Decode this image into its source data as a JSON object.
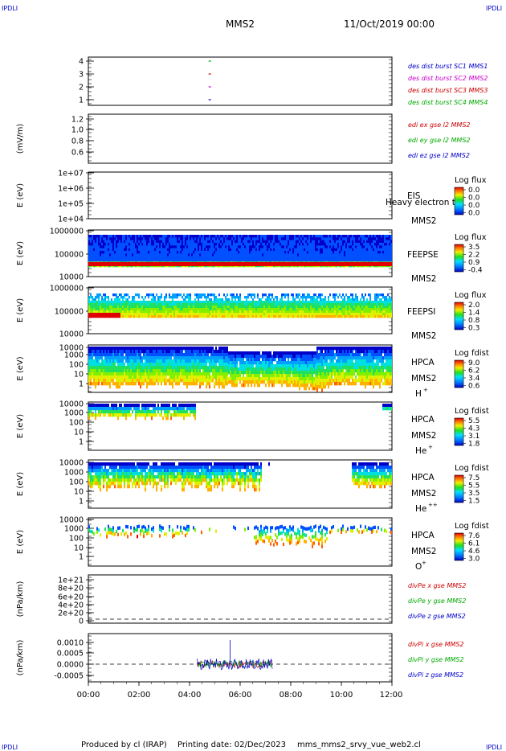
{
  "header": {
    "corner_tl": "IPDLI",
    "corner_tr": "IPDLI",
    "spacecraft": "MMS2",
    "date": "11/Oct/2019 00:00"
  },
  "footer": {
    "corner_bl": "IPDLI",
    "corner_br": "IPDLI",
    "credit": "Produced by cl (IRAP)",
    "printing": "Printing date: 02/Dec/2023",
    "file": "mms_mms2_srvy_vue_web2.cl"
  },
  "x_ticks": [
    "00:00",
    "02:00",
    "04:00",
    "06:00",
    "08:00",
    "10:00",
    "12:00"
  ],
  "panels": [
    {
      "id": "burst",
      "ticks": [
        "4",
        "3",
        "2",
        "1"
      ],
      "ylabel": "",
      "legend": [
        {
          "text": "des dist burst SC1 MMS1",
          "color": "#0000cc"
        },
        {
          "text": "des dist burst SC2 MMS2",
          "color": "#cc00cc"
        },
        {
          "text": "des dist burst SC3 MMS3",
          "color": "#cc0000"
        },
        {
          "text": "des dist burst SC4 MMS4",
          "color": "#00aa00"
        }
      ]
    },
    {
      "id": "edi",
      "ticks": [
        "1.2",
        "1.0",
        "0.8",
        "0.6"
      ],
      "ylabel": "(mV/m)",
      "legend": [
        {
          "text": "edi ex gse l2 MMS2",
          "color": "#cc0000"
        },
        {
          "text": "edi ey gse l2 MMS2",
          "color": "#00aa00"
        },
        {
          "text": "edi ez gse l2 MMS2",
          "color": "#0000cc"
        }
      ]
    },
    {
      "id": "eis",
      "ticks": [
        "1e+07",
        "1e+06",
        "1e+05",
        "1e+04"
      ],
      "ylabel": "E (eV)",
      "inst": "EIS",
      "sc": "MMS2",
      "note": "Heavy electron to",
      "cbar_title": "Log flux",
      "cbar_ticks": [
        "0.0",
        "0.0",
        "0.0",
        "0.0"
      ]
    },
    {
      "id": "feepse",
      "ticks": [
        "1000000",
        "100000",
        "10000"
      ],
      "ylabel": "E (eV)",
      "inst": "FEEPSE",
      "sc": "MMS2",
      "cbar_title": "Log flux",
      "cbar_ticks": [
        "3.5",
        "2.2",
        "0.9",
        "-0.4"
      ]
    },
    {
      "id": "feepsi",
      "ticks": [
        "1000000",
        "100000",
        "10000"
      ],
      "ylabel": "E (eV)",
      "inst": "FEEPSI",
      "sc": "MMS2",
      "cbar_title": "Log flux",
      "cbar_ticks": [
        "2.0",
        "1.4",
        "0.8",
        "0.3"
      ]
    },
    {
      "id": "hpca_h",
      "ticks": [
        "10000",
        "1000",
        "100",
        "10",
        "1"
      ],
      "ylabel": "E (eV)",
      "inst": "HPCA",
      "sc": "MMS2",
      "species": "H",
      "species_sup": "+",
      "cbar_title": "Log fdist",
      "cbar_ticks": [
        "9.0",
        "6.2",
        "3.4",
        "0.6"
      ]
    },
    {
      "id": "hpca_he",
      "ticks": [
        "10000",
        "1000",
        "100",
        "10",
        "1"
      ],
      "ylabel": "E (eV)",
      "inst": "HPCA",
      "sc": "MMS2",
      "species": "He",
      "species_sup": "+",
      "cbar_title": "Log fdist",
      "cbar_ticks": [
        "5.5",
        "4.3",
        "3.1",
        "1.8"
      ]
    },
    {
      "id": "hpca_hepp",
      "ticks": [
        "10000",
        "1000",
        "100",
        "10",
        "1"
      ],
      "ylabel": "E (eV)",
      "inst": "HPCA",
      "sc": "MMS2",
      "species": "He",
      "species_sup": "++",
      "cbar_title": "Log fdist",
      "cbar_ticks": [
        "7.5",
        "5.5",
        "3.5",
        "1.5"
      ]
    },
    {
      "id": "hpca_o",
      "ticks": [
        "10000",
        "1000",
        "100",
        "10",
        "1"
      ],
      "ylabel": "E (eV)",
      "inst": "HPCA",
      "sc": "MMS2",
      "species": "O",
      "species_sup": "+",
      "cbar_title": "Log fdist",
      "cbar_ticks": [
        "7.6",
        "6.1",
        "4.6",
        "3.0"
      ]
    },
    {
      "id": "divpe",
      "ticks": [
        "1e+21",
        "8e+20",
        "6e+20",
        "4e+20",
        "2e+20",
        "0"
      ],
      "ylabel": "(nPa/km)",
      "legend": [
        {
          "text": "divPe x gse MMS2",
          "color": "#cc0000"
        },
        {
          "text": "divPe y gse MMS2",
          "color": "#00aa00"
        },
        {
          "text": "divPe z gse MMS2",
          "color": "#0000cc"
        }
      ]
    },
    {
      "id": "divpi",
      "ticks": [
        "0.0010",
        "0.0005",
        "0.0000",
        "-0.0005"
      ],
      "ylabel": "(nPa/km)",
      "legend": [
        {
          "text": "divPi x gse MMS2",
          "color": "#cc0000"
        },
        {
          "text": "divPi y gse MMS2",
          "color": "#00aa00"
        },
        {
          "text": "divPi z gse MMS2",
          "color": "#0000cc"
        }
      ]
    }
  ],
  "chart_data": [
    {
      "type": "scatter",
      "panel": "burst",
      "x_unit": "UT hours",
      "x_range": [
        0,
        12
      ],
      "ylim": [
        0.5,
        4.5
      ],
      "series": [
        {
          "name": "des dist burst SC1 MMS1",
          "x": [
            4.8
          ],
          "y": [
            1
          ]
        },
        {
          "name": "des dist burst SC2 MMS2",
          "x": [
            4.8
          ],
          "y": [
            2
          ]
        },
        {
          "name": "des dist burst SC3 MMS3",
          "x": [
            4.8
          ],
          "y": [
            3
          ]
        },
        {
          "name": "des dist burst SC4 MMS4",
          "x": [
            4.8
          ],
          "y": [
            4
          ]
        }
      ]
    },
    {
      "type": "heatmap",
      "panel": "feepse",
      "x_range": [
        0,
        12
      ],
      "ylim": [
        10000,
        1000000
      ],
      "y_scale": "log"
    },
    {
      "type": "heatmap",
      "panel": "feepsi",
      "x_range": [
        0,
        12
      ],
      "ylim": [
        10000,
        1000000
      ],
      "y_scale": "log"
    },
    {
      "type": "heatmap",
      "panel": "hpca_h",
      "x_range": [
        0,
        12
      ],
      "ylim": [
        1,
        30000
      ],
      "y_scale": "log"
    },
    {
      "type": "heatmap",
      "panel": "hpca_he",
      "x_range": [
        0,
        12
      ],
      "ylim": [
        1,
        30000
      ],
      "y_scale": "log"
    },
    {
      "type": "heatmap",
      "panel": "hpca_hepp",
      "x_range": [
        0,
        12
      ],
      "ylim": [
        1,
        30000
      ],
      "y_scale": "log"
    },
    {
      "type": "heatmap",
      "panel": "hpca_o",
      "x_range": [
        0,
        12
      ],
      "ylim": [
        1,
        30000
      ],
      "y_scale": "log"
    },
    {
      "type": "line",
      "panel": "divpi",
      "x_range": [
        0,
        12
      ],
      "ylim": [
        -0.0008,
        0.0013
      ],
      "x_span": [
        4.3,
        7.3
      ]
    }
  ]
}
